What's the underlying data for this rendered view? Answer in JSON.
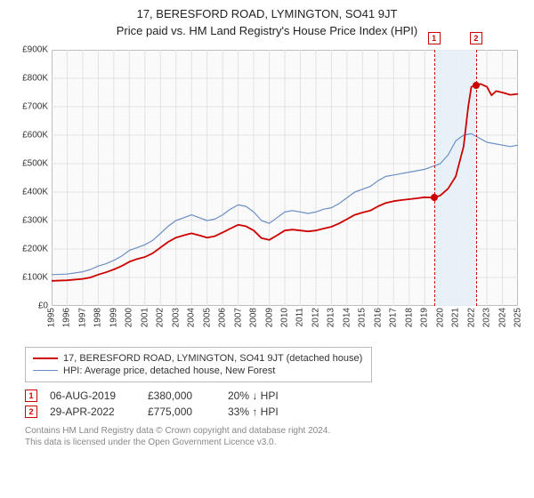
{
  "title": "17, BERESFORD ROAD, LYMINGTON, SO41 9JT",
  "subtitle": "Price paid vs. HM Land Registry's House Price Index (HPI)",
  "chart": {
    "type": "line",
    "background_color": "#fafafa",
    "border_color": "#999999",
    "grid_color": "#e2e2e2",
    "ylim": [
      0,
      900
    ],
    "ytick_step": 100,
    "ytick_prefix": "£",
    "ytick_suffix": "K",
    "x_years": [
      1995,
      1996,
      1997,
      1998,
      1999,
      2000,
      2001,
      2002,
      2003,
      2004,
      2005,
      2006,
      2007,
      2008,
      2009,
      2010,
      2011,
      2012,
      2013,
      2014,
      2015,
      2016,
      2017,
      2018,
      2019,
      2020,
      2021,
      2022,
      2023,
      2024,
      2025
    ],
    "highlight_band": {
      "x_from": 2019.6,
      "x_to": 2022.3,
      "color": "#e6eff7"
    },
    "dashed_lines": [
      {
        "x": 2019.6,
        "color": "#cc0000",
        "label": "1"
      },
      {
        "x": 2022.3,
        "color": "#cc0000",
        "label": "2"
      }
    ],
    "series": [
      {
        "name": "HPI: Average price, detached house, New Forest",
        "color": "#6a8fc4",
        "width": 1.2,
        "points": [
          [
            1995,
            110
          ],
          [
            1996,
            112
          ],
          [
            1997,
            120
          ],
          [
            1997.5,
            128
          ],
          [
            1998,
            140
          ],
          [
            1998.5,
            148
          ],
          [
            1999,
            160
          ],
          [
            1999.5,
            175
          ],
          [
            2000,
            195
          ],
          [
            2000.5,
            205
          ],
          [
            2001,
            215
          ],
          [
            2001.5,
            230
          ],
          [
            2002,
            255
          ],
          [
            2002.5,
            280
          ],
          [
            2003,
            300
          ],
          [
            2003.5,
            310
          ],
          [
            2004,
            320
          ],
          [
            2004.5,
            310
          ],
          [
            2005,
            300
          ],
          [
            2005.5,
            305
          ],
          [
            2006,
            320
          ],
          [
            2006.5,
            340
          ],
          [
            2007,
            355
          ],
          [
            2007.5,
            350
          ],
          [
            2008,
            330
          ],
          [
            2008.5,
            300
          ],
          [
            2009,
            290
          ],
          [
            2009.5,
            310
          ],
          [
            2010,
            330
          ],
          [
            2010.5,
            335
          ],
          [
            2011,
            330
          ],
          [
            2011.5,
            325
          ],
          [
            2012,
            330
          ],
          [
            2012.5,
            340
          ],
          [
            2013,
            345
          ],
          [
            2013.5,
            360
          ],
          [
            2014,
            380
          ],
          [
            2014.5,
            400
          ],
          [
            2015,
            410
          ],
          [
            2015.5,
            420
          ],
          [
            2016,
            440
          ],
          [
            2016.5,
            455
          ],
          [
            2017,
            460
          ],
          [
            2017.5,
            465
          ],
          [
            2018,
            470
          ],
          [
            2018.5,
            475
          ],
          [
            2019,
            480
          ],
          [
            2019.5,
            490
          ],
          [
            2020,
            500
          ],
          [
            2020.5,
            530
          ],
          [
            2021,
            580
          ],
          [
            2021.5,
            600
          ],
          [
            2022,
            605
          ],
          [
            2022.5,
            590
          ],
          [
            2023,
            575
          ],
          [
            2023.5,
            570
          ],
          [
            2024,
            565
          ],
          [
            2024.5,
            560
          ],
          [
            2025,
            565
          ]
        ]
      },
      {
        "name": "17, BERESFORD ROAD, LYMINGTON, SO41 9JT (detached house)",
        "color": "#cc0000",
        "width": 1.8,
        "points": [
          [
            1995,
            88
          ],
          [
            1996,
            90
          ],
          [
            1997,
            95
          ],
          [
            1997.5,
            100
          ],
          [
            1998,
            110
          ],
          [
            1998.5,
            118
          ],
          [
            1999,
            128
          ],
          [
            1999.5,
            140
          ],
          [
            2000,
            155
          ],
          [
            2000.5,
            165
          ],
          [
            2001,
            172
          ],
          [
            2001.5,
            185
          ],
          [
            2002,
            205
          ],
          [
            2002.5,
            225
          ],
          [
            2003,
            240
          ],
          [
            2003.5,
            248
          ],
          [
            2004,
            255
          ],
          [
            2004.5,
            248
          ],
          [
            2005,
            240
          ],
          [
            2005.5,
            245
          ],
          [
            2006,
            258
          ],
          [
            2006.5,
            272
          ],
          [
            2007,
            285
          ],
          [
            2007.5,
            280
          ],
          [
            2008,
            265
          ],
          [
            2008.5,
            238
          ],
          [
            2009,
            232
          ],
          [
            2009.5,
            248
          ],
          [
            2010,
            265
          ],
          [
            2010.5,
            268
          ],
          [
            2011,
            265
          ],
          [
            2011.5,
            262
          ],
          [
            2012,
            265
          ],
          [
            2012.5,
            272
          ],
          [
            2013,
            278
          ],
          [
            2013.5,
            290
          ],
          [
            2014,
            305
          ],
          [
            2014.5,
            320
          ],
          [
            2015,
            328
          ],
          [
            2015.5,
            335
          ],
          [
            2016,
            350
          ],
          [
            2016.5,
            362
          ],
          [
            2017,
            368
          ],
          [
            2017.5,
            372
          ],
          [
            2018,
            375
          ],
          [
            2018.5,
            378
          ],
          [
            2019,
            382
          ],
          [
            2019.6,
            380
          ],
          [
            2020,
            388
          ],
          [
            2020.5,
            412
          ],
          [
            2021,
            455
          ],
          [
            2021.5,
            560
          ],
          [
            2021.8,
            700
          ],
          [
            2022,
            770
          ],
          [
            2022.3,
            775
          ],
          [
            2022.6,
            780
          ],
          [
            2023,
            770
          ],
          [
            2023.3,
            740
          ],
          [
            2023.6,
            755
          ],
          [
            2024,
            750
          ],
          [
            2024.5,
            742
          ],
          [
            2025,
            745
          ]
        ]
      }
    ],
    "point_markers": [
      {
        "x": 2019.6,
        "y": 380,
        "color": "#cc0000"
      },
      {
        "x": 2022.3,
        "y": 775,
        "color": "#cc0000"
      }
    ]
  },
  "legend": [
    {
      "color": "#cc0000",
      "width": 2,
      "label": "17, BERESFORD ROAD, LYMINGTON, SO41 9JT (detached house)"
    },
    {
      "color": "#6a8fc4",
      "width": 1,
      "label": "HPI: Average price, detached house, New Forest"
    }
  ],
  "events": [
    {
      "num": "1",
      "date": "06-AUG-2019",
      "price": "£380,000",
      "delta": "20% ↓ HPI"
    },
    {
      "num": "2",
      "date": "29-APR-2022",
      "price": "£775,000",
      "delta": "33% ↑ HPI"
    }
  ],
  "credits_line1": "Contains HM Land Registry data © Crown copyright and database right 2024.",
  "credits_line2": "This data is licensed under the Open Government Licence v3.0."
}
